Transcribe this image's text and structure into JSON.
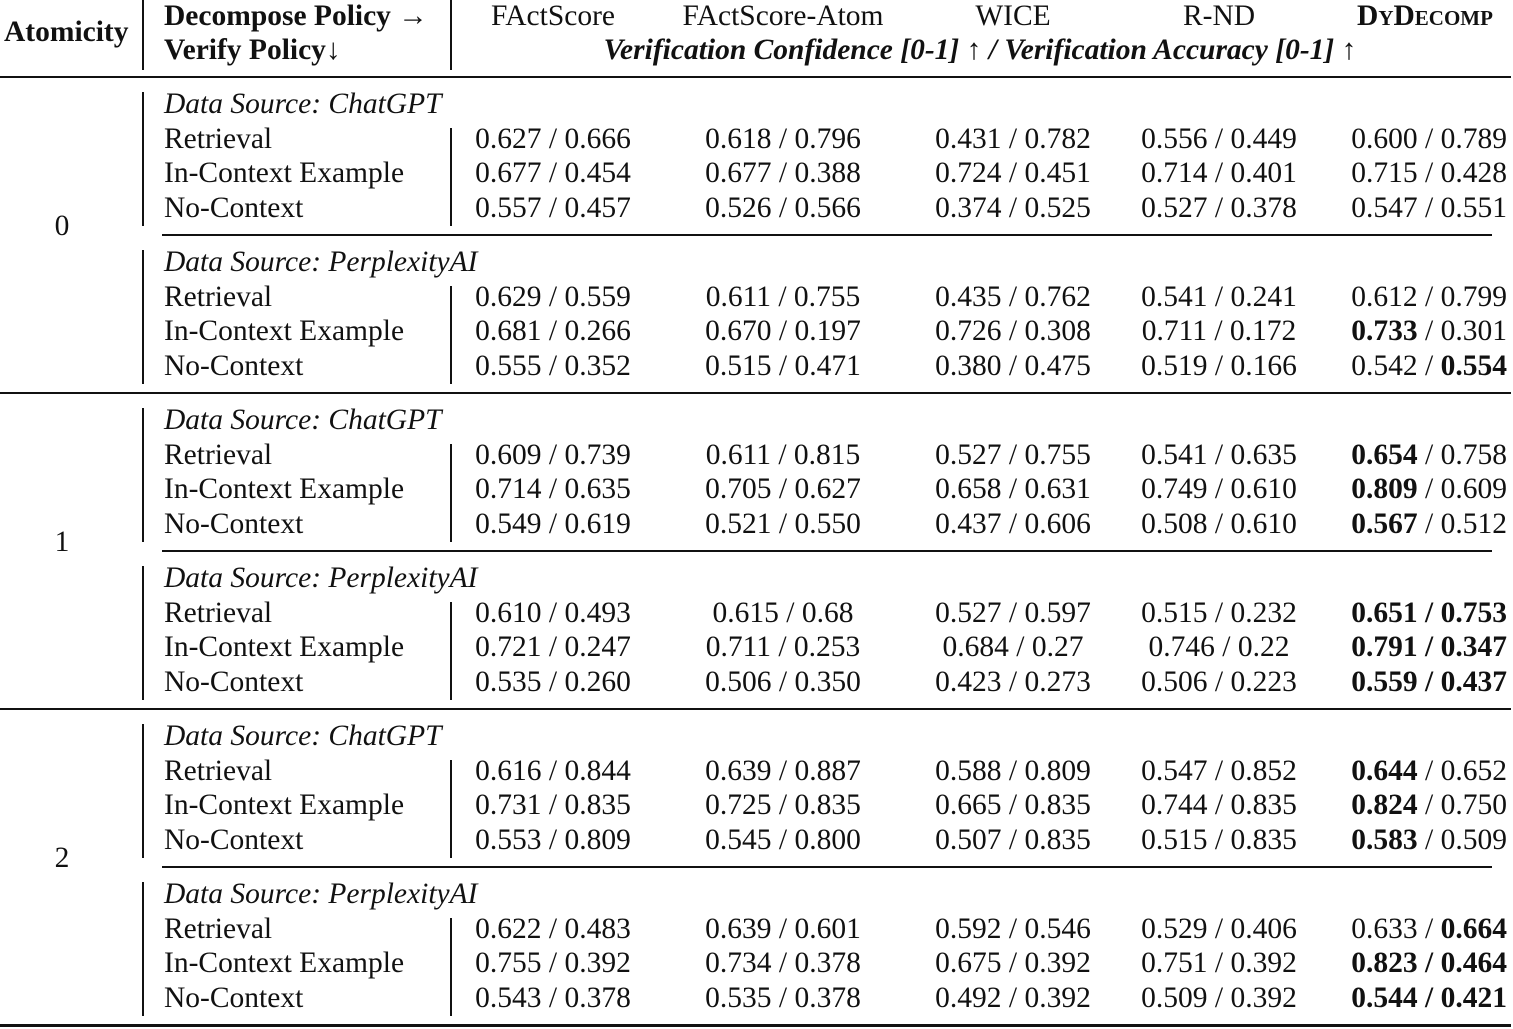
{
  "header": {
    "atomicity": "Atomicity",
    "policy_line1": "Decompose Policy →",
    "policy_line2": "Verify Policy↓",
    "columns": [
      "FActScore",
      "FActScore-Atom",
      "WICE",
      "R-ND",
      "DyDecomp"
    ],
    "metric_caption": "Verification Confidence [0-1] ↑ / Verification Accuracy [0-1] ↑"
  },
  "blocks": [
    {
      "atomicity": "0",
      "groups": [
        {
          "source": "Data Source: ChatGPT",
          "rows": [
            {
              "policy": "Retrieval",
              "cells": [
                [
                  "0.627",
                  "0.666"
                ],
                [
                  "0.618",
                  "0.796"
                ],
                [
                  "0.431",
                  "0.782"
                ],
                [
                  "0.556",
                  "0.449"
                ],
                [
                  "0.600",
                  "0.789"
                ]
              ],
              "bold": [
                false,
                false
              ]
            },
            {
              "policy": "In-Context Example",
              "cells": [
                [
                  "0.677",
                  "0.454"
                ],
                [
                  "0.677",
                  "0.388"
                ],
                [
                  "0.724",
                  "0.451"
                ],
                [
                  "0.714",
                  "0.401"
                ],
                [
                  "0.715",
                  "0.428"
                ]
              ],
              "bold": [
                false,
                false
              ]
            },
            {
              "policy": "No-Context",
              "cells": [
                [
                  "0.557",
                  "0.457"
                ],
                [
                  "0.526",
                  "0.566"
                ],
                [
                  "0.374",
                  "0.525"
                ],
                [
                  "0.527",
                  "0.378"
                ],
                [
                  "0.547",
                  "0.551"
                ]
              ],
              "bold": [
                false,
                false
              ]
            }
          ]
        },
        {
          "source": "Data Source: PerplexityAI",
          "rows": [
            {
              "policy": "Retrieval",
              "cells": [
                [
                  "0.629",
                  "0.559"
                ],
                [
                  "0.611",
                  "0.755"
                ],
                [
                  "0.435",
                  "0.762"
                ],
                [
                  "0.541",
                  "0.241"
                ],
                [
                  "0.612",
                  "0.799"
                ]
              ],
              "bold": [
                false,
                false
              ]
            },
            {
              "policy": "In-Context Example",
              "cells": [
                [
                  "0.681",
                  "0.266"
                ],
                [
                  "0.670",
                  "0.197"
                ],
                [
                  "0.726",
                  "0.308"
                ],
                [
                  "0.711",
                  "0.172"
                ],
                [
                  "0.733",
                  "0.301"
                ]
              ],
              "bold": [
                true,
                false
              ]
            },
            {
              "policy": "No-Context",
              "cells": [
                [
                  "0.555",
                  "0.352"
                ],
                [
                  "0.515",
                  "0.471"
                ],
                [
                  "0.380",
                  "0.475"
                ],
                [
                  "0.519",
                  "0.166"
                ],
                [
                  "0.542",
                  "0.554"
                ]
              ],
              "bold": [
                false,
                true
              ]
            }
          ]
        }
      ]
    },
    {
      "atomicity": "1",
      "groups": [
        {
          "source": "Data Source: ChatGPT",
          "rows": [
            {
              "policy": "Retrieval",
              "cells": [
                [
                  "0.609",
                  "0.739"
                ],
                [
                  "0.611",
                  "0.815"
                ],
                [
                  "0.527",
                  "0.755"
                ],
                [
                  "0.541",
                  "0.635"
                ],
                [
                  "0.654",
                  "0.758"
                ]
              ],
              "bold": [
                true,
                false
              ]
            },
            {
              "policy": "In-Context Example",
              "cells": [
                [
                  "0.714",
                  "0.635"
                ],
                [
                  "0.705",
                  "0.627"
                ],
                [
                  "0.658",
                  "0.631"
                ],
                [
                  "0.749",
                  "0.610"
                ],
                [
                  "0.809",
                  "0.609"
                ]
              ],
              "bold": [
                true,
                false
              ]
            },
            {
              "policy": "No-Context",
              "cells": [
                [
                  "0.549",
                  "0.619"
                ],
                [
                  "0.521",
                  "0.550"
                ],
                [
                  "0.437",
                  "0.606"
                ],
                [
                  "0.508",
                  "0.610"
                ],
                [
                  "0.567",
                  "0.512"
                ]
              ],
              "bold": [
                true,
                false
              ]
            }
          ]
        },
        {
          "source": "Data Source: PerplexityAI",
          "rows": [
            {
              "policy": "Retrieval",
              "cells": [
                [
                  "0.610",
                  "0.493"
                ],
                [
                  "0.615",
                  "0.68"
                ],
                [
                  "0.527",
                  "0.597"
                ],
                [
                  "0.515",
                  "0.232"
                ],
                [
                  "0.651",
                  "0.753"
                ]
              ],
              "bold": [
                true,
                true
              ]
            },
            {
              "policy": "In-Context Example",
              "cells": [
                [
                  "0.721",
                  "0.247"
                ],
                [
                  "0.711",
                  "0.253"
                ],
                [
                  "0.684",
                  "0.27"
                ],
                [
                  "0.746",
                  "0.22"
                ],
                [
                  "0.791",
                  "0.347"
                ]
              ],
              "bold": [
                true,
                true
              ]
            },
            {
              "policy": "No-Context",
              "cells": [
                [
                  "0.535",
                  "0.260"
                ],
                [
                  "0.506",
                  "0.350"
                ],
                [
                  "0.423",
                  "0.273"
                ],
                [
                  "0.506",
                  "0.223"
                ],
                [
                  "0.559",
                  "0.437"
                ]
              ],
              "bold": [
                true,
                true
              ]
            }
          ]
        }
      ]
    },
    {
      "atomicity": "2",
      "groups": [
        {
          "source": "Data Source: ChatGPT",
          "rows": [
            {
              "policy": "Retrieval",
              "cells": [
                [
                  "0.616",
                  "0.844"
                ],
                [
                  "0.639",
                  "0.887"
                ],
                [
                  "0.588",
                  "0.809"
                ],
                [
                  "0.547",
                  "0.852"
                ],
                [
                  "0.644",
                  "0.652"
                ]
              ],
              "bold": [
                true,
                false
              ]
            },
            {
              "policy": "In-Context Example",
              "cells": [
                [
                  "0.731",
                  "0.835"
                ],
                [
                  "0.725",
                  "0.835"
                ],
                [
                  "0.665",
                  "0.835"
                ],
                [
                  "0.744",
                  "0.835"
                ],
                [
                  "0.824",
                  "0.750"
                ]
              ],
              "bold": [
                true,
                false
              ]
            },
            {
              "policy": "No-Context",
              "cells": [
                [
                  "0.553",
                  "0.809"
                ],
                [
                  "0.545",
                  "0.800"
                ],
                [
                  "0.507",
                  "0.835"
                ],
                [
                  "0.515",
                  "0.835"
                ],
                [
                  "0.583",
                  "0.509"
                ]
              ],
              "bold": [
                true,
                false
              ]
            }
          ]
        },
        {
          "source": "Data Source: PerplexityAI",
          "rows": [
            {
              "policy": "Retrieval",
              "cells": [
                [
                  "0.622",
                  "0.483"
                ],
                [
                  "0.639",
                  "0.601"
                ],
                [
                  "0.592",
                  "0.546"
                ],
                [
                  "0.529",
                  "0.406"
                ],
                [
                  "0.633",
                  "0.664"
                ]
              ],
              "bold": [
                false,
                true
              ]
            },
            {
              "policy": "In-Context Example",
              "cells": [
                [
                  "0.755",
                  "0.392"
                ],
                [
                  "0.734",
                  "0.378"
                ],
                [
                  "0.675",
                  "0.392"
                ],
                [
                  "0.751",
                  "0.392"
                ],
                [
                  "0.823",
                  "0.464"
                ]
              ],
              "bold": [
                true,
                true
              ]
            },
            {
              "policy": "No-Context",
              "cells": [
                [
                  "0.543",
                  "0.378"
                ],
                [
                  "0.535",
                  "0.378"
                ],
                [
                  "0.492",
                  "0.392"
                ],
                [
                  "0.509",
                  "0.392"
                ],
                [
                  "0.544",
                  "0.421"
                ]
              ],
              "bold": [
                true,
                true
              ]
            }
          ]
        }
      ]
    }
  ]
}
